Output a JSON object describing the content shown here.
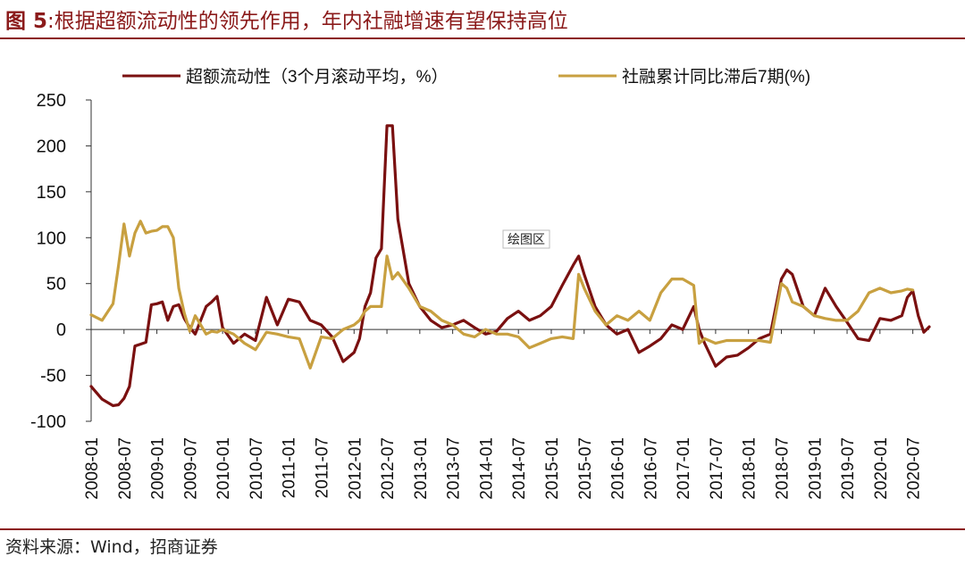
{
  "header": {
    "fig_label": "图 5",
    "colon": ":",
    "title": "根据超额流动性的领先作用，年内社融增速有望保持高位"
  },
  "footer": {
    "source": "资料来源：Wind，招商证券"
  },
  "plot_label": "绘图区",
  "colors": {
    "series1": "#7a1010",
    "series2": "#c8a040",
    "accent": "#8b1a1a"
  },
  "chart_data": {
    "type": "line",
    "legend_position": "top",
    "grid": false,
    "ylim": [
      -100,
      250
    ],
    "yticks": [
      "250",
      "200",
      "150",
      "100",
      "50",
      "0",
      "-50",
      "-100"
    ],
    "ytick_values": [
      250,
      200,
      150,
      100,
      50,
      0,
      -50,
      -100
    ],
    "xlim": [
      "2008-01",
      "2020-10"
    ],
    "xticks": [
      "2008-01",
      "2008-07",
      "2009-01",
      "2009-07",
      "2010-01",
      "2010-07",
      "2011-01",
      "2011-07",
      "2012-01",
      "2012-07",
      "2013-01",
      "2013-07",
      "2014-01",
      "2014-07",
      "2015-01",
      "2015-07",
      "2016-01",
      "2016-07",
      "2017-01",
      "2017-07",
      "2018-01",
      "2018-07",
      "2019-01",
      "2019-07",
      "2020-01",
      "2020-07"
    ],
    "series": [
      {
        "name": "超额流动性（3个月滚动平均，%）",
        "x": [
          "2008-01",
          "2008-03",
          "2008-05",
          "2008-06",
          "2008-07",
          "2008-08",
          "2008-09",
          "2008-10",
          "2008-11",
          "2008-12",
          "2009-01",
          "2009-02",
          "2009-03",
          "2009-04",
          "2009-05",
          "2009-06",
          "2009-07",
          "2009-08",
          "2009-09",
          "2009-10",
          "2009-11",
          "2009-12",
          "2010-01",
          "2010-03",
          "2010-05",
          "2010-07",
          "2010-09",
          "2010-11",
          "2011-01",
          "2011-03",
          "2011-05",
          "2011-07",
          "2011-09",
          "2011-11",
          "2012-01",
          "2012-02",
          "2012-03",
          "2012-04",
          "2012-05",
          "2012-06",
          "2012-07",
          "2012-08",
          "2012-09",
          "2012-11",
          "2013-01",
          "2013-03",
          "2013-05",
          "2013-07",
          "2013-09",
          "2013-11",
          "2014-01",
          "2014-03",
          "2014-05",
          "2014-07",
          "2014-09",
          "2014-11",
          "2015-01",
          "2015-03",
          "2015-05",
          "2015-06",
          "2015-07",
          "2015-09",
          "2015-11",
          "2016-01",
          "2016-03",
          "2016-05",
          "2016-07",
          "2016-09",
          "2016-11",
          "2017-01",
          "2017-03",
          "2017-04",
          "2017-05",
          "2017-07",
          "2017-09",
          "2017-11",
          "2018-01",
          "2018-03",
          "2018-05",
          "2018-07",
          "2018-08",
          "2018-09",
          "2018-11",
          "2019-01",
          "2019-03",
          "2019-05",
          "2019-07",
          "2019-09",
          "2019-11",
          "2020-01",
          "2020-03",
          "2020-05",
          "2020-06",
          "2020-07",
          "2020-08",
          "2020-09",
          "2020-10"
        ],
        "values": [
          -62,
          -76,
          -83,
          -82,
          -75,
          -62,
          -18,
          -16,
          -14,
          27,
          28,
          30,
          10,
          25,
          27,
          12,
          2,
          -5,
          10,
          25,
          30,
          36,
          2,
          -15,
          -5,
          -12,
          35,
          5,
          33,
          30,
          10,
          5,
          -8,
          -35,
          -25,
          -10,
          25,
          40,
          78,
          88,
          222,
          222,
          120,
          50,
          25,
          10,
          2,
          5,
          10,
          2,
          -5,
          -2,
          12,
          20,
          10,
          15,
          25,
          48,
          70,
          80,
          60,
          25,
          5,
          -5,
          0,
          -25,
          -18,
          -10,
          5,
          0,
          25,
          0,
          -15,
          -40,
          -30,
          -28,
          -20,
          -10,
          -5,
          55,
          65,
          60,
          25,
          15,
          45,
          25,
          8,
          -10,
          -12,
          12,
          10,
          15,
          35,
          42,
          15,
          -3,
          3
        ]
      },
      {
        "name": "社融累计同比滞后7期(%)",
        "x": [
          "2008-01",
          "2008-03",
          "2008-05",
          "2008-06",
          "2008-07",
          "2008-08",
          "2008-09",
          "2008-10",
          "2008-11",
          "2008-12",
          "2009-01",
          "2009-02",
          "2009-03",
          "2009-04",
          "2009-05",
          "2009-06",
          "2009-07",
          "2009-08",
          "2009-09",
          "2009-10",
          "2009-11",
          "2009-12",
          "2010-01",
          "2010-03",
          "2010-05",
          "2010-07",
          "2010-09",
          "2010-11",
          "2011-01",
          "2011-03",
          "2011-05",
          "2011-07",
          "2011-09",
          "2011-11",
          "2012-01",
          "2012-02",
          "2012-03",
          "2012-04",
          "2012-05",
          "2012-06",
          "2012-07",
          "2012-08",
          "2012-09",
          "2012-11",
          "2013-01",
          "2013-03",
          "2013-05",
          "2013-07",
          "2013-09",
          "2013-11",
          "2014-01",
          "2014-03",
          "2014-05",
          "2014-07",
          "2014-09",
          "2014-11",
          "2015-01",
          "2015-03",
          "2015-05",
          "2015-06",
          "2015-07",
          "2015-09",
          "2015-11",
          "2016-01",
          "2016-03",
          "2016-05",
          "2016-07",
          "2016-09",
          "2016-11",
          "2017-01",
          "2017-03",
          "2017-04",
          "2017-05",
          "2017-07",
          "2017-09",
          "2017-11",
          "2018-01",
          "2018-03",
          "2018-05",
          "2018-07",
          "2018-08",
          "2018-09",
          "2018-11",
          "2019-01",
          "2019-03",
          "2019-05",
          "2019-07",
          "2019-09",
          "2019-11",
          "2020-01",
          "2020-03",
          "2020-05",
          "2020-06",
          "2020-07",
          "2020-08",
          "2020-09",
          "2020-10"
        ],
        "values": [
          16,
          10,
          28,
          70,
          115,
          80,
          105,
          118,
          105,
          107,
          108,
          112,
          112,
          100,
          45,
          18,
          -2,
          15,
          5,
          -5,
          -2,
          -3,
          0,
          -5,
          -15,
          -22,
          -3,
          -5,
          -8,
          -10,
          -42,
          -8,
          -10,
          0,
          5,
          10,
          20,
          25,
          25,
          25,
          80,
          55,
          62,
          45,
          25,
          20,
          10,
          5,
          -5,
          -8,
          0,
          -5,
          -5,
          -8,
          -20,
          -15,
          -10,
          -8,
          -10,
          60,
          45,
          20,
          5,
          15,
          10,
          20,
          10,
          40,
          55,
          55,
          48,
          -15,
          -10,
          -15,
          -12,
          -12,
          -12,
          -12,
          -14,
          50,
          45,
          30,
          25,
          15,
          12,
          10,
          10,
          20,
          40,
          45,
          40,
          42,
          44,
          43,
          null,
          null,
          null
        ]
      }
    ]
  }
}
